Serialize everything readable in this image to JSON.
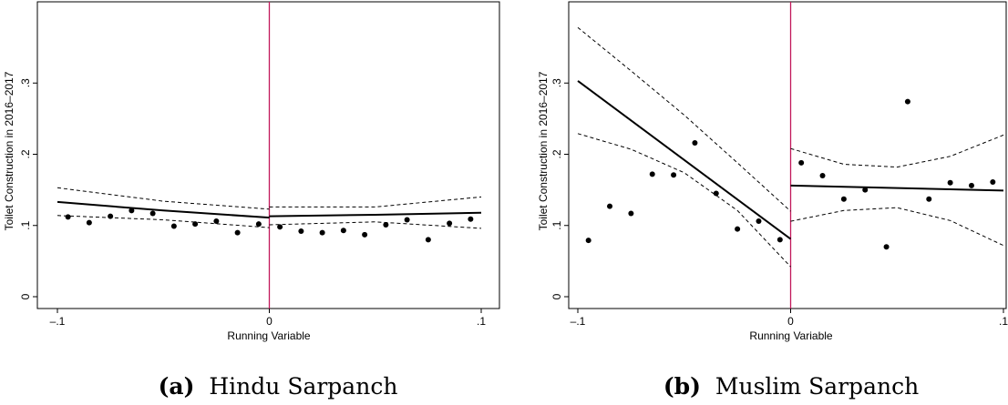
{
  "chart_data": [
    {
      "type": "scatter",
      "caption": {
        "label": "(a)",
        "text": "Hindu Sarpanch"
      },
      "xlabel": "Running Variable",
      "ylabel": "Toilet Construction in 2016–2017",
      "xlim": [
        -0.1,
        0.1
      ],
      "ylim": [
        0,
        0.4
      ],
      "xticks": [
        {
          "value": -0.1,
          "label": "–.1"
        },
        {
          "value": 0,
          "label": "0"
        },
        {
          "value": 0.1,
          "label": ".1"
        }
      ],
      "yticks": [
        {
          "value": 0,
          "label": "0"
        },
        {
          "value": 0.1,
          "label": ".1"
        },
        {
          "value": 0.2,
          "label": ".2"
        },
        {
          "value": 0.3,
          "label": ".3"
        }
      ],
      "grid": false,
      "cutoff": 0,
      "cutoff_color": "#c2185b",
      "points": [
        [
          -0.095,
          0.112
        ],
        [
          -0.085,
          0.104
        ],
        [
          -0.075,
          0.113
        ],
        [
          -0.065,
          0.121
        ],
        [
          -0.055,
          0.117
        ],
        [
          -0.045,
          0.099
        ],
        [
          -0.035,
          0.102
        ],
        [
          -0.025,
          0.106
        ],
        [
          -0.015,
          0.09
        ],
        [
          -0.005,
          0.102
        ],
        [
          0.005,
          0.098
        ],
        [
          0.015,
          0.092
        ],
        [
          0.025,
          0.09
        ],
        [
          0.035,
          0.093
        ],
        [
          0.045,
          0.087
        ],
        [
          0.055,
          0.101
        ],
        [
          0.065,
          0.108
        ],
        [
          0.075,
          0.08
        ],
        [
          0.085,
          0.103
        ],
        [
          0.095,
          0.109
        ]
      ],
      "fit": {
        "left": [
          [
            -0.1,
            0.133
          ],
          [
            -0.05,
            0.121
          ],
          [
            0,
            0.111
          ]
        ],
        "right": [
          [
            0,
            0.113
          ],
          [
            0.05,
            0.115
          ],
          [
            0.1,
            0.118
          ]
        ]
      },
      "ci_upper": {
        "left": [
          [
            -0.1,
            0.153
          ],
          [
            -0.05,
            0.134
          ],
          [
            0,
            0.123
          ]
        ],
        "right": [
          [
            0,
            0.126
          ],
          [
            0.05,
            0.126
          ],
          [
            0.1,
            0.14
          ]
        ]
      },
      "ci_lower": {
        "left": [
          [
            -0.1,
            0.114
          ],
          [
            -0.05,
            0.108
          ],
          [
            0,
            0.097
          ]
        ],
        "right": [
          [
            0,
            0.101
          ],
          [
            0.05,
            0.105
          ],
          [
            0.1,
            0.096
          ]
        ]
      }
    },
    {
      "type": "scatter",
      "caption": {
        "label": "(b)",
        "text": "Muslim Sarpanch"
      },
      "xlabel": "Running Variable",
      "ylabel": "Toilet Construction in 2016–2017",
      "xlim": [
        -0.1,
        0.1
      ],
      "ylim": [
        0,
        0.4
      ],
      "xticks": [
        {
          "value": -0.1,
          "label": "–.1"
        },
        {
          "value": 0,
          "label": "0"
        },
        {
          "value": 0.1,
          "label": ".1"
        }
      ],
      "yticks": [
        {
          "value": 0,
          "label": "0"
        },
        {
          "value": 0.1,
          "label": ".1"
        },
        {
          "value": 0.2,
          "label": ".2"
        },
        {
          "value": 0.3,
          "label": ".3"
        }
      ],
      "grid": false,
      "cutoff": 0,
      "cutoff_color": "#c2185b",
      "points": [
        [
          -0.095,
          0.079
        ],
        [
          -0.085,
          0.127
        ],
        [
          -0.075,
          0.117
        ],
        [
          -0.065,
          0.172
        ],
        [
          -0.055,
          0.171
        ],
        [
          -0.045,
          0.216
        ],
        [
          -0.035,
          0.145
        ],
        [
          -0.025,
          0.095
        ],
        [
          -0.015,
          0.106
        ],
        [
          -0.005,
          0.08
        ],
        [
          0.005,
          0.188
        ],
        [
          0.015,
          0.17
        ],
        [
          0.025,
          0.137
        ],
        [
          0.035,
          0.15
        ],
        [
          0.045,
          0.07
        ],
        [
          0.055,
          0.274
        ],
        [
          0.065,
          0.137
        ],
        [
          0.075,
          0.16
        ],
        [
          0.085,
          0.156
        ],
        [
          0.095,
          0.161
        ]
      ],
      "fit": {
        "left": [
          [
            -0.1,
            0.303
          ],
          [
            0,
            0.081
          ]
        ],
        "right": [
          [
            0,
            0.156
          ],
          [
            0.1,
            0.149
          ]
        ]
      },
      "ci_upper": {
        "left": [
          [
            -0.1,
            0.378
          ],
          [
            -0.075,
            0.317
          ],
          [
            -0.05,
            0.255
          ],
          [
            -0.025,
            0.188
          ],
          [
            0,
            0.12
          ]
        ],
        "right": [
          [
            0,
            0.208
          ],
          [
            0.025,
            0.186
          ],
          [
            0.05,
            0.182
          ],
          [
            0.075,
            0.197
          ],
          [
            0.1,
            0.227
          ]
        ]
      },
      "ci_lower": {
        "left": [
          [
            -0.1,
            0.229
          ],
          [
            -0.075,
            0.207
          ],
          [
            -0.05,
            0.174
          ],
          [
            -0.025,
            0.121
          ],
          [
            0,
            0.042
          ]
        ],
        "right": [
          [
            0,
            0.106
          ],
          [
            0.025,
            0.121
          ],
          [
            0.05,
            0.125
          ],
          [
            0.075,
            0.107
          ],
          [
            0.1,
            0.072
          ]
        ]
      }
    }
  ]
}
